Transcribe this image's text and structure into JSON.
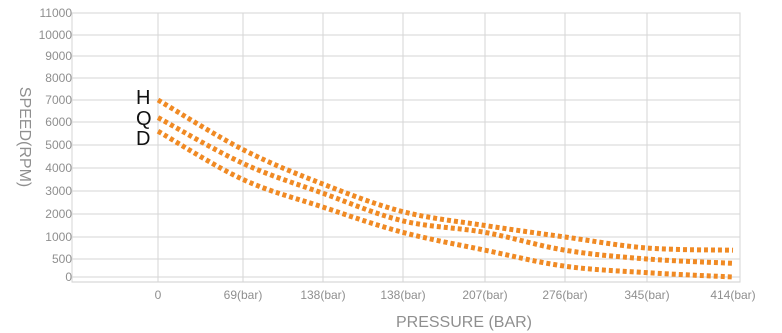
{
  "chart_data": {
    "type": "line",
    "title": "",
    "xlabel": "PRESSURE (BAR)",
    "ylabel": "SPEED(RPM)",
    "x_categories": [
      "0",
      "69(bar)",
      "138(bar)",
      "138(bar)",
      "207(bar)",
      "276(bar)",
      "345(bar)",
      "414(bar)"
    ],
    "y_ticks": [
      "0",
      "500",
      "1000",
      "2000",
      "3000",
      "4000",
      "5000",
      "6000",
      "7000",
      "8000",
      "9000",
      "10000",
      "11000"
    ],
    "grid": true,
    "series": [
      {
        "name": "H",
        "values": [
          7000,
          4800,
          3300,
          2100,
          1500,
          1000,
          750,
          700
        ],
        "color": "#f08a24"
      },
      {
        "name": "Q",
        "values": [
          6200,
          4200,
          2900,
          1700,
          1200,
          700,
          500,
          380
        ],
        "color": "#f08a24"
      },
      {
        "name": "D",
        "values": [
          5600,
          3500,
          2300,
          1200,
          700,
          300,
          120,
          0
        ],
        "color": "#f08a24"
      }
    ]
  }
}
